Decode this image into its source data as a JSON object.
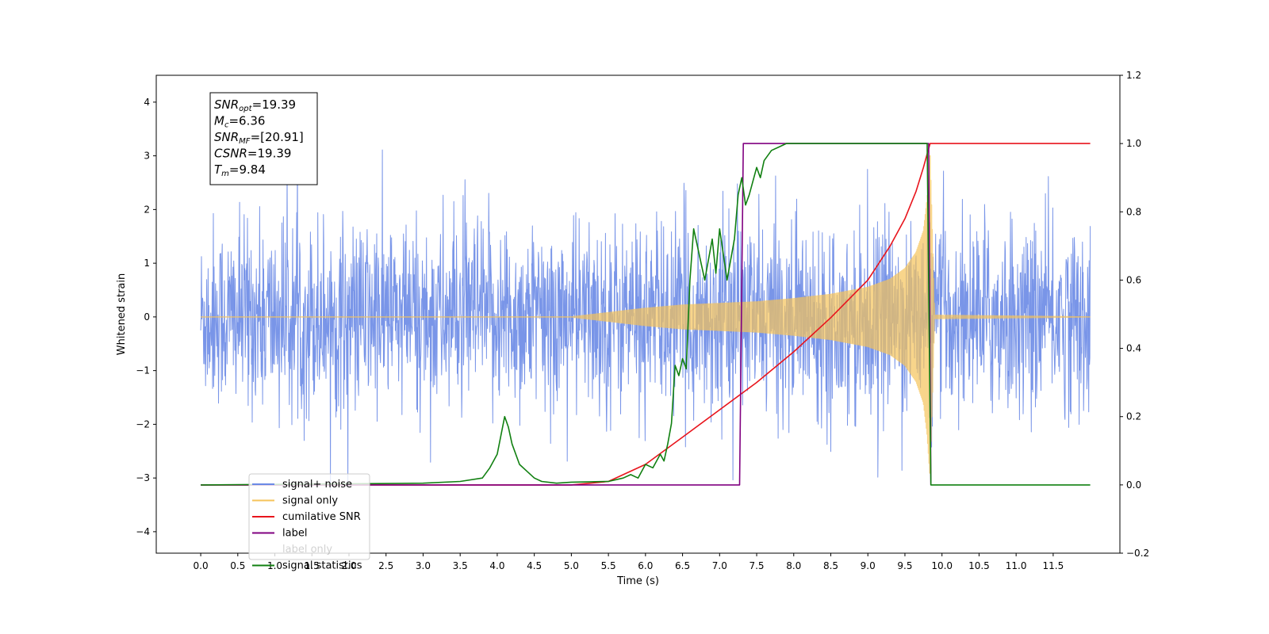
{
  "chart_data": {
    "type": "line",
    "xlabel": "Time (s)",
    "ylabel": "Whitened strain",
    "xlim": [
      -0.6,
      12.4
    ],
    "ylim": [
      -4.4,
      4.5
    ],
    "y2lim": [
      -0.2,
      1.2
    ],
    "grid": false,
    "legend_position": "lower-left",
    "x_ticks": [
      "0.0",
      "0.5",
      "1.0",
      "1.5",
      "2.0",
      "2.5",
      "3.0",
      "3.5",
      "4.0",
      "4.5",
      "5.0",
      "5.5",
      "6.0",
      "6.5",
      "7.0",
      "7.5",
      "8.0",
      "8.5",
      "9.0",
      "9.5",
      "10.0",
      "10.5",
      "11.0",
      "11.5"
    ],
    "y_ticks": [
      "4",
      "3",
      "2",
      "1",
      "0",
      "−1",
      "−2",
      "−3",
      "−4"
    ],
    "y2_ticks": [
      "1.2",
      "1.0",
      "0.8",
      "0.6",
      "0.4",
      "0.2",
      "0.0",
      "−0.2"
    ],
    "annotation": [
      {
        "base": "SNR",
        "sub": "opt",
        "value": "=19.39"
      },
      {
        "base": "M",
        "sub": "c",
        "value": "=6.36"
      },
      {
        "base": "SNR",
        "sub": "MF",
        "value": "=[20.91]"
      },
      {
        "base": "CSNR",
        "sub": "",
        "value": "=19.39"
      },
      {
        "base": "T",
        "sub": "m",
        "value": "=9.84"
      }
    ],
    "series": [
      {
        "name": "signal+ noise",
        "color": "#6a8ae6",
        "axis": "left",
        "x_range": [
          0,
          12.0
        ],
        "noise_sd": 0.95,
        "spike_max": [
          4.1,
          -4.0
        ]
      },
      {
        "name": "signal only",
        "color": "#f5c35a",
        "axis": "left",
        "x_range": [
          0,
          12.0
        ],
        "merger_time": 9.84,
        "envelope": {
          "x": [
            0,
            5.0,
            5.5,
            6.0,
            6.5,
            7.0,
            7.5,
            8.0,
            8.5,
            9.0,
            9.3,
            9.5,
            9.65,
            9.75,
            9.8,
            9.84,
            9.9,
            12.0
          ],
          "y": [
            0,
            0,
            0.08,
            0.16,
            0.22,
            0.25,
            0.28,
            0.34,
            0.42,
            0.55,
            0.7,
            0.9,
            1.2,
            1.6,
            2.2,
            3.0,
            0.03,
            0
          ]
        }
      },
      {
        "name": "cumilative SNR",
        "color": "#e8141c",
        "axis": "right",
        "x": [
          0,
          5.0,
          5.5,
          6.0,
          6.5,
          7.0,
          7.5,
          8.0,
          8.5,
          9.0,
          9.3,
          9.5,
          9.65,
          9.75,
          9.8,
          9.84,
          12.0
        ],
        "y": [
          0,
          0,
          0.01,
          0.06,
          0.14,
          0.22,
          0.3,
          0.39,
          0.49,
          0.6,
          0.7,
          0.78,
          0.86,
          0.93,
          0.97,
          1.0,
          1.0
        ]
      },
      {
        "name": "label",
        "color": "#800080",
        "axis": "right",
        "x": [
          0,
          7.27,
          7.32,
          9.82,
          9.85
        ],
        "y": [
          0,
          0,
          1.0,
          1.0,
          0
        ]
      },
      {
        "name": "label only",
        "color": "#800080",
        "axis": "right",
        "hidden": true,
        "x": [],
        "y": []
      },
      {
        "name": "signal statistics",
        "color": "#118011",
        "axis": "right",
        "x": [
          0,
          3.0,
          3.5,
          3.8,
          3.9,
          4.0,
          4.1,
          4.15,
          4.2,
          4.3,
          4.4,
          4.5,
          4.6,
          4.8,
          5.0,
          5.5,
          5.7,
          5.8,
          5.9,
          6.0,
          6.1,
          6.2,
          6.25,
          6.3,
          6.35,
          6.4,
          6.45,
          6.5,
          6.55,
          6.6,
          6.65,
          6.7,
          6.75,
          6.8,
          6.9,
          6.95,
          7.0,
          7.1,
          7.2,
          7.25,
          7.3,
          7.35,
          7.4,
          7.5,
          7.55,
          7.6,
          7.7,
          7.8,
          7.9,
          8.0,
          9.8,
          9.85,
          12.0
        ],
        "y": [
          0,
          0.005,
          0.01,
          0.02,
          0.05,
          0.09,
          0.2,
          0.17,
          0.12,
          0.06,
          0.04,
          0.02,
          0.01,
          0.005,
          0.008,
          0.01,
          0.02,
          0.03,
          0.02,
          0.06,
          0.05,
          0.09,
          0.07,
          0.12,
          0.18,
          0.35,
          0.32,
          0.37,
          0.34,
          0.6,
          0.75,
          0.7,
          0.65,
          0.6,
          0.72,
          0.62,
          0.75,
          0.6,
          0.72,
          0.85,
          0.9,
          0.82,
          0.85,
          0.93,
          0.9,
          0.95,
          0.98,
          0.99,
          1.0,
          1.0,
          1.0,
          0,
          0
        ]
      }
    ]
  }
}
